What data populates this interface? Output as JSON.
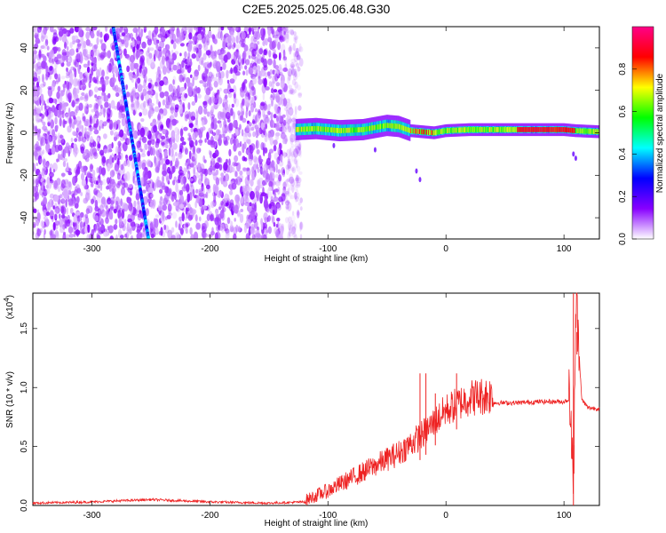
{
  "title": "C2E5.2025.025.06.48.G30",
  "chart_data": [
    {
      "type": "heatmap",
      "xlabel": "Height of straight line (km)",
      "ylabel": "Frequency (Hz)",
      "xlim": [
        -350,
        130
      ],
      "ylim": [
        -50,
        50
      ],
      "xticks": [
        -300,
        -200,
        -100,
        0,
        100
      ],
      "yticks": [
        -40,
        -20,
        0,
        20,
        40
      ],
      "colorbar": {
        "label": "Normalized spectral amplitude",
        "range": [
          0.0,
          1.0
        ],
        "ticks": [
          "0.0",
          "0.2",
          "0.4",
          "0.6",
          "0.8"
        ],
        "colors": [
          "#ffffff",
          "#8800ff",
          "#0000ff",
          "#00ffff",
          "#00ff00",
          "#ffff00",
          "#ff0000",
          "#ff0088"
        ]
      },
      "features": {
        "noise_region_x": [
          -350,
          -127
        ],
        "diagonal_streak": {
          "x": [
            -282,
            -252
          ],
          "y": [
            50,
            -50
          ]
        },
        "narrowband_line": {
          "x": [
            -127,
            -110,
            -90,
            -70,
            -50,
            -40,
            -30,
            -20,
            -10,
            0,
            20,
            60,
            80,
            100,
            110,
            130
          ],
          "y": [
            1.5,
            2.0,
            1.0,
            1.5,
            3.5,
            3.0,
            1.0,
            0.5,
            0.0,
            1.0,
            1.5,
            1.5,
            1.5,
            1.5,
            1.0,
            0.5
          ]
        }
      }
    },
    {
      "type": "line",
      "xlabel": "Height of straight line (km)",
      "ylabel": "SNR (10 * v/v)",
      "scale_label": "(x10",
      "scale_exp": "4",
      "xlim": [
        -350,
        130
      ],
      "ylim": [
        0.0,
        1.8
      ],
      "xticks": [
        -300,
        -200,
        -100,
        0,
        100
      ],
      "yticks": [
        "0.0",
        "0.5",
        "1.0",
        "1.5"
      ],
      "color": "#ee2222",
      "x": [
        -350,
        -300,
        -250,
        -200,
        -150,
        -120,
        -100,
        -80,
        -60,
        -40,
        -20,
        -10,
        0,
        10,
        20,
        30,
        40,
        60,
        80,
        100,
        105,
        108,
        110,
        115,
        120,
        130
      ],
      "y": [
        0.01,
        0.02,
        0.04,
        0.02,
        0.01,
        0.02,
        0.1,
        0.2,
        0.3,
        0.4,
        0.55,
        0.65,
        0.75,
        0.8,
        0.85,
        0.86,
        0.87,
        0.87,
        0.88,
        0.88,
        0.9,
        0.15,
        1.8,
        0.9,
        0.83,
        0.82
      ],
      "spikes": [
        {
          "x": -22,
          "y": 1.12
        },
        {
          "x": -17,
          "y": 1.12
        },
        {
          "x": -9,
          "y": 0.95
        },
        {
          "x": 9,
          "y": 1.12
        },
        {
          "x": 108,
          "y": 1.8
        },
        {
          "x": 111,
          "y": 1.28
        }
      ]
    }
  ]
}
